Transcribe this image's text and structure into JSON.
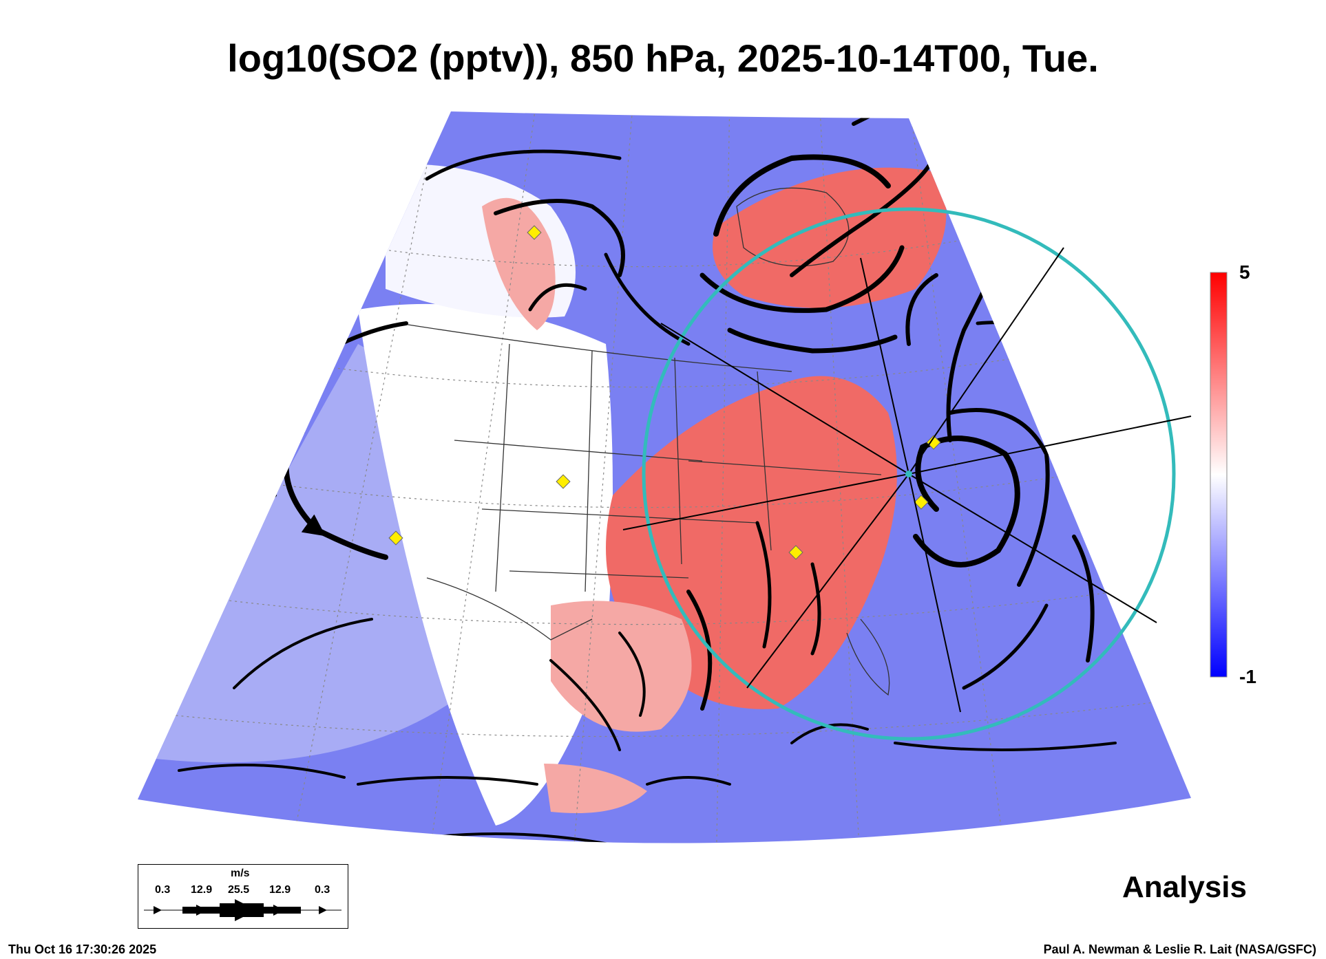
{
  "title": "log10(SO2 (pptv)), 850 hPa, 2025-10-14T00, Tue.",
  "colorbar": {
    "max_label": "5",
    "min_label": "-1",
    "colors": {
      "high": "#ff0000",
      "mid": "#ffffff",
      "low": "#0000ff"
    }
  },
  "wind_legend": {
    "unit": "m/s",
    "values": [
      "0.3",
      "12.9",
      "25.5",
      "12.9",
      "0.3"
    ]
  },
  "analysis_label": "Analysis",
  "timestamp": "Thu Oct 16 17:30:26 2025",
  "credit": "Paul A. Newman & Leslie R. Lait (NASA/GSFC)",
  "map": {
    "range_ring_color": "#33bbbb",
    "marker_color": "#ffee00",
    "field_colors": {
      "background_blue": "#7a80f2",
      "light_blue": "#a8acf5",
      "pale": "#e8e8fb",
      "red": "#f06a66",
      "light_red": "#f5a8a5"
    }
  }
}
